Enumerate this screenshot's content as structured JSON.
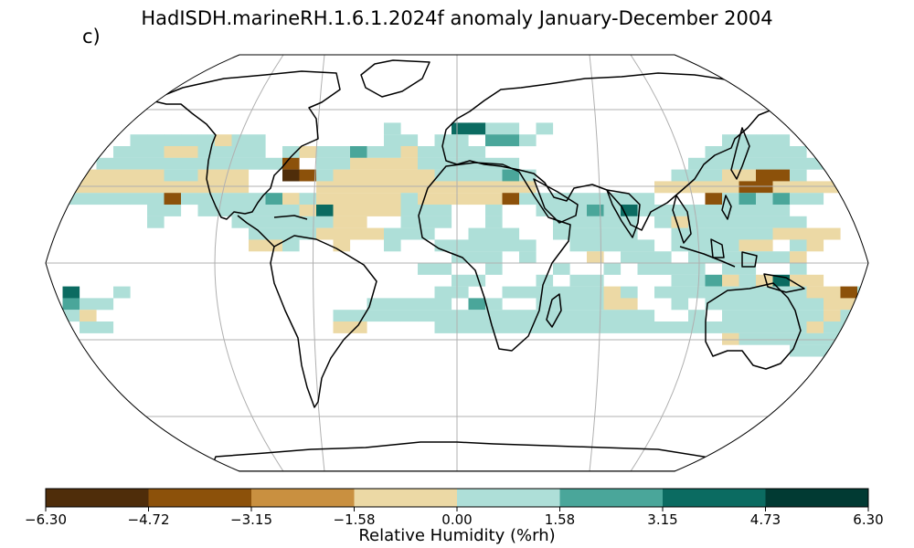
{
  "title": "HadISDH.marineRH.1.6.1.2024f anomaly January-December 2004",
  "panel_label": "c)",
  "colorbar": {
    "label": "Relative Humidity (%rh)",
    "ticks": [
      "−6.30",
      "−4.72",
      "−3.15",
      "−1.58",
      "0.00",
      "1.58",
      "3.15",
      "4.73",
      "6.30"
    ],
    "colors": [
      "#4f2d0a",
      "#8c510a",
      "#c99040",
      "#ecd9a5",
      "#aedfd8",
      "#4aa69a",
      "#0b6b61",
      "#013a33"
    ]
  },
  "map": {
    "projection": "Robinson",
    "gridlines": true,
    "coastlines": true,
    "ocean_color": "#ffffff"
  }
}
